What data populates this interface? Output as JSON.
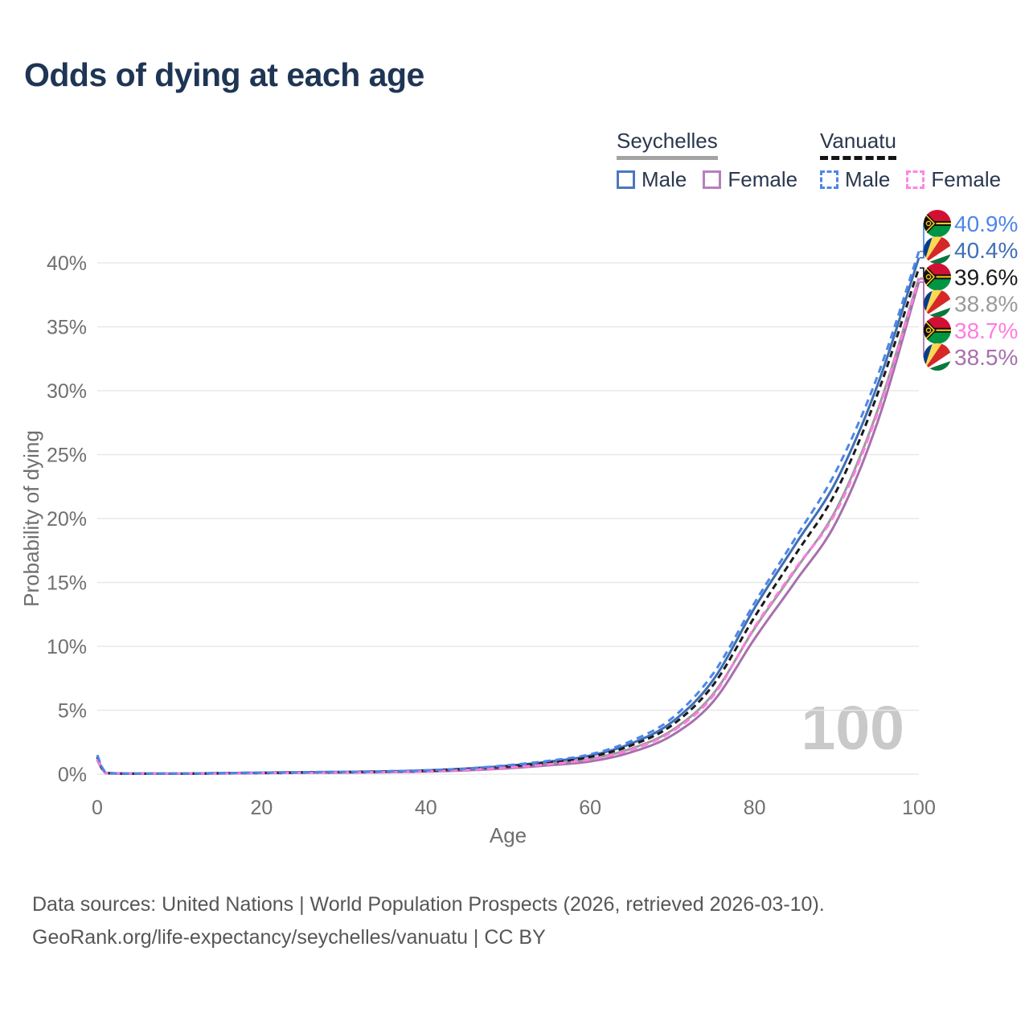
{
  "title": "Odds of dying at each age",
  "legend": {
    "groups": [
      {
        "id": "seychelles",
        "label": "Seychelles",
        "line_style": "solid",
        "underline_color": "#a3a3a3",
        "items": [
          {
            "label": "Male",
            "color": "#4a79bd",
            "dashed": false
          },
          {
            "label": "Female",
            "color": "#b77fbe",
            "dashed": false
          }
        ]
      },
      {
        "id": "vanuatu",
        "label": "Vanuatu",
        "line_style": "dashed",
        "underline_color": "#141414",
        "items": [
          {
            "label": "Male",
            "color": "#4f86e8",
            "dashed": true
          },
          {
            "label": "Female",
            "color": "#ff85e4",
            "dashed": true
          }
        ]
      }
    ]
  },
  "chart_data": {
    "type": "line",
    "title": "Odds of dying at each age",
    "xlabel": "Age",
    "ylabel": "Probability of dying",
    "xlim": [
      0,
      100
    ],
    "ylim": [
      0,
      43
    ],
    "xticks": [
      0,
      20,
      40,
      60,
      80,
      100
    ],
    "yticks": [
      0,
      5,
      10,
      15,
      20,
      25,
      30,
      35,
      40
    ],
    "ytick_suffix": "%",
    "grid": true,
    "legend_position": "top-right",
    "x": [
      0,
      1,
      5,
      10,
      15,
      20,
      25,
      30,
      35,
      40,
      45,
      50,
      55,
      60,
      65,
      70,
      75,
      80,
      85,
      90,
      95,
      100
    ],
    "series": [
      {
        "name": "Seychelles Both sexes",
        "country": "seychelles",
        "sex": "both",
        "color": "#9a9a9a",
        "dash": null,
        "end_label": "38.8%",
        "end_value": 38.8,
        "values": [
          1.2,
          0.08,
          0.04,
          0.04,
          0.06,
          0.09,
          0.12,
          0.15,
          0.18,
          0.24,
          0.36,
          0.55,
          0.82,
          1.2,
          2.0,
          3.45,
          6.3,
          11.4,
          16.0,
          20.8,
          28.5,
          38.8
        ]
      },
      {
        "name": "Seychelles Female",
        "country": "seychelles",
        "sex": "female",
        "color": "#a770ad",
        "dash": null,
        "end_label": "38.5%",
        "end_value": 38.5,
        "values": [
          1.1,
          0.07,
          0.03,
          0.03,
          0.05,
          0.08,
          0.1,
          0.12,
          0.15,
          0.2,
          0.3,
          0.46,
          0.7,
          1.0,
          1.72,
          3.05,
          5.7,
          10.6,
          15.1,
          19.8,
          27.6,
          38.5
        ]
      },
      {
        "name": "Seychelles Male",
        "country": "seychelles",
        "sex": "male",
        "color": "#3f6fb5",
        "dash": null,
        "end_label": "40.4%",
        "end_value": 40.4,
        "values": [
          1.3,
          0.09,
          0.05,
          0.05,
          0.08,
          0.12,
          0.15,
          0.18,
          0.22,
          0.3,
          0.44,
          0.66,
          0.98,
          1.45,
          2.4,
          4.1,
          7.4,
          13.0,
          18.0,
          23.0,
          30.5,
          40.4
        ]
      },
      {
        "name": "Vanuatu Both sexes",
        "country": "vanuatu",
        "sex": "both",
        "color": "#1a1a1a",
        "dash": "8 5",
        "end_label": "39.6%",
        "end_value": 39.6,
        "values": [
          1.35,
          0.09,
          0.04,
          0.04,
          0.07,
          0.1,
          0.13,
          0.16,
          0.2,
          0.27,
          0.4,
          0.6,
          0.9,
          1.35,
          2.25,
          3.85,
          7.0,
          12.3,
          17.2,
          22.2,
          29.8,
          39.6
        ]
      },
      {
        "name": "Vanuatu Female",
        "country": "vanuatu",
        "sex": "female",
        "color": "#ff7ce0",
        "dash": "9 6",
        "end_label": "38.7%",
        "end_value": 38.7,
        "values": [
          1.2,
          0.08,
          0.04,
          0.04,
          0.06,
          0.09,
          0.11,
          0.14,
          0.17,
          0.23,
          0.34,
          0.52,
          0.78,
          1.15,
          1.92,
          3.35,
          6.15,
          11.5,
          16.1,
          20.6,
          28.3,
          38.7
        ]
      },
      {
        "name": "Vanuatu Male",
        "country": "vanuatu",
        "sex": "male",
        "color": "#4f86e8",
        "dash": "9 6",
        "end_label": "40.9%",
        "end_value": 40.9,
        "values": [
          1.5,
          0.1,
          0.05,
          0.05,
          0.08,
          0.12,
          0.15,
          0.18,
          0.22,
          0.3,
          0.45,
          0.7,
          1.05,
          1.55,
          2.6,
          4.4,
          7.9,
          13.4,
          18.5,
          23.8,
          31.2,
          40.9
        ]
      }
    ]
  },
  "watermark": "100",
  "footer": {
    "line1": "Data sources: United Nations | World Population Prospects (2026, retrieved 2026-03-10).",
    "line2": "GeoRank.org/life-expectancy/seychelles/vanuatu | CC BY"
  }
}
